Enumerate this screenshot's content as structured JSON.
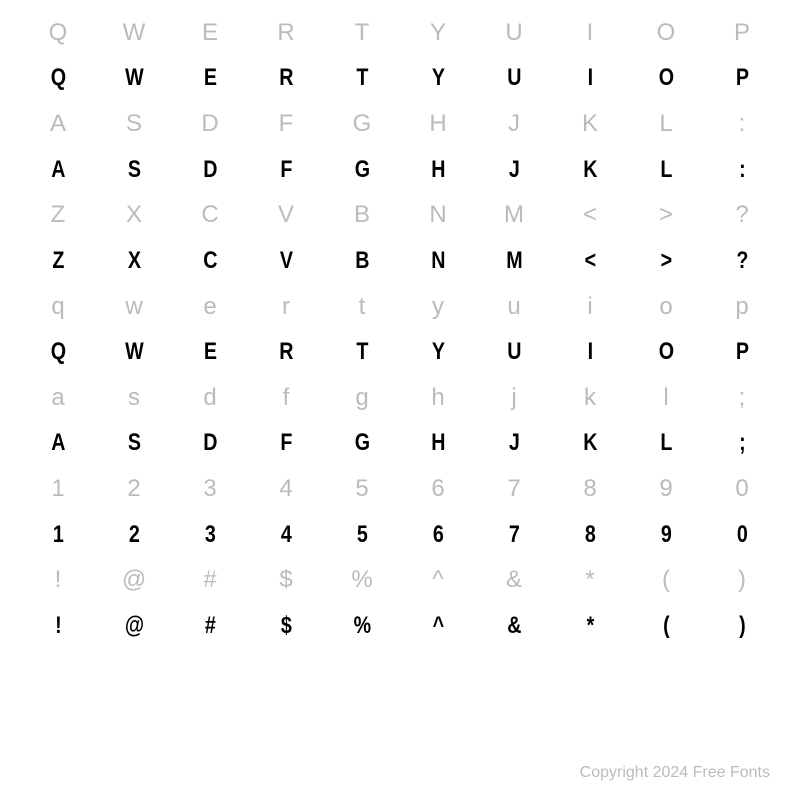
{
  "rows": [
    {
      "style": "ref",
      "cells": [
        "Q",
        "W",
        "E",
        "R",
        "T",
        "Y",
        "U",
        "I",
        "O",
        "P"
      ]
    },
    {
      "style": "glyph",
      "cells": [
        "Q",
        "W",
        "E",
        "R",
        "T",
        "Y",
        "U",
        "I",
        "O",
        "P"
      ]
    },
    {
      "style": "ref",
      "cells": [
        "A",
        "S",
        "D",
        "F",
        "G",
        "H",
        "J",
        "K",
        "L",
        ":"
      ]
    },
    {
      "style": "glyph",
      "cells": [
        "A",
        "S",
        "D",
        "F",
        "G",
        "H",
        "J",
        "K",
        "L",
        ":"
      ]
    },
    {
      "style": "ref",
      "cells": [
        "Z",
        "X",
        "C",
        "V",
        "B",
        "N",
        "M",
        "<",
        ">",
        "?"
      ]
    },
    {
      "style": "glyph",
      "cells": [
        "Z",
        "X",
        "C",
        "V",
        "B",
        "N",
        "M",
        "<",
        ">",
        "?"
      ]
    },
    {
      "style": "ref",
      "cells": [
        "q",
        "w",
        "e",
        "r",
        "t",
        "y",
        "u",
        "i",
        "o",
        "p"
      ]
    },
    {
      "style": "glyph",
      "cells": [
        "Q",
        "W",
        "E",
        "R",
        "T",
        "Y",
        "U",
        "I",
        "O",
        "P"
      ]
    },
    {
      "style": "ref",
      "cells": [
        "a",
        "s",
        "d",
        "f",
        "g",
        "h",
        "j",
        "k",
        "l",
        ";"
      ]
    },
    {
      "style": "glyph",
      "cells": [
        "A",
        "S",
        "D",
        "F",
        "G",
        "H",
        "J",
        "K",
        "L",
        ";"
      ]
    },
    {
      "style": "ref",
      "cells": [
        "1",
        "2",
        "3",
        "4",
        "5",
        "6",
        "7",
        "8",
        "9",
        "0"
      ]
    },
    {
      "style": "glyph",
      "cells": [
        "1",
        "2",
        "3",
        "4",
        "5",
        "6",
        "7",
        "8",
        "9",
        "0"
      ]
    },
    {
      "style": "ref",
      "cells": [
        "!",
        "@",
        "#",
        "$",
        "%",
        "^",
        "&",
        "*",
        "(",
        ")"
      ]
    },
    {
      "style": "glyph",
      "cells": [
        "!",
        "@",
        "#",
        "$",
        "%",
        "^",
        "&",
        "*",
        "(",
        ")"
      ]
    }
  ],
  "copyright": "Copyright 2024 Free Fonts",
  "colors": {
    "background": "#ffffff",
    "ref_text": "#bbbbbb",
    "glyph_text": "#000000"
  },
  "layout": {
    "columns": 10,
    "rows": 16,
    "cell_fontsize": 24,
    "copyright_fontsize": 16
  }
}
